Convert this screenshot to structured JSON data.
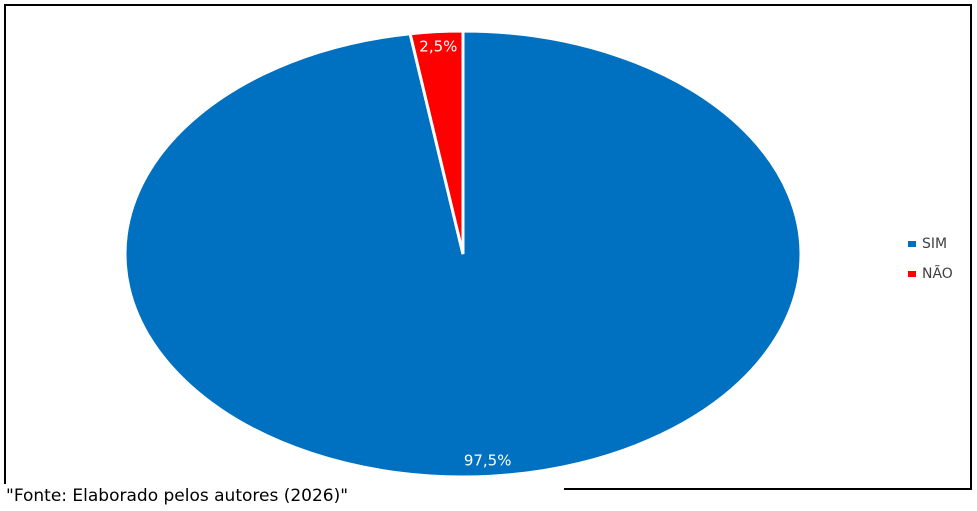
{
  "chart_data": {
    "type": "pie",
    "categories": [
      "SIM",
      "NÃO"
    ],
    "values": [
      97.5,
      2.5
    ],
    "value_labels": [
      "97,5%",
      "2,5%"
    ],
    "colors": [
      "#0070c0",
      "#ff0000"
    ],
    "legend": "right",
    "source": "\"Fonte: Elaborado pelos autores (2026)\""
  }
}
